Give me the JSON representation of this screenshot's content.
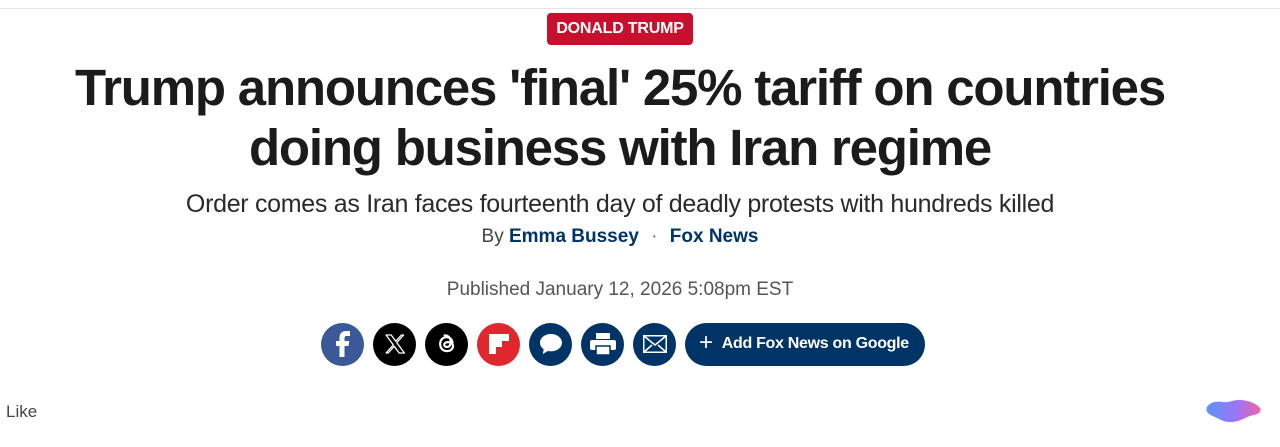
{
  "category": {
    "label": "DONALD TRUMP"
  },
  "article": {
    "headline": "Trump announces 'final' 25% tariff on countries doing business with Iran regime",
    "subheadline": "Order comes as Iran faces fourteenth day of deadly protests with hundreds killed",
    "byline": {
      "prefix": "By",
      "author": "Emma Bussey",
      "separator": "·",
      "outlet": "Fox News"
    },
    "published": "Published January 12, 2026 5:08pm EST"
  },
  "share": {
    "icons": [
      "facebook-icon",
      "x-icon",
      "threads-icon",
      "flipboard-icon",
      "comments-icon",
      "print-icon",
      "email-icon"
    ],
    "google_button": {
      "plus": "+",
      "label": "Add Fox News on Google"
    }
  },
  "footer": {
    "like_label": "Like"
  },
  "colors": {
    "category_red": "#c8102e",
    "navy": "#003366",
    "facebook": "#3b5998",
    "flipboard": "#e0272e"
  }
}
